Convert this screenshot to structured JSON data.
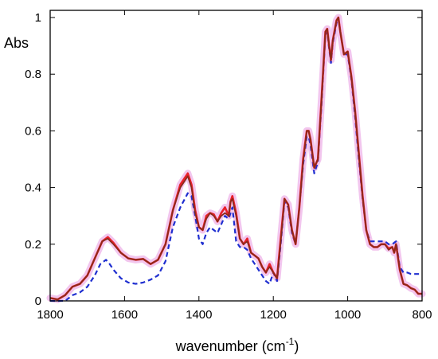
{
  "chart_data": {
    "type": "line",
    "xlabel": "wavenumber",
    "xlabel_unit": "(cm",
    "xlabel_unit_exp": "-1",
    "xlabel_unit_close": ")",
    "ylabel": "Abs",
    "xlim": [
      1800,
      800
    ],
    "ylim": [
      0,
      1.05
    ],
    "x_reversed": true,
    "grid": false,
    "x_ticks": [
      "1800",
      "1600",
      "1400",
      "1200",
      "1000",
      "800"
    ],
    "x_tick_values": [
      1800,
      1600,
      1400,
      1200,
      1000,
      800
    ],
    "y_ticks": [
      "0",
      "0.2",
      "0.4",
      "0.6",
      "0.8",
      "1"
    ],
    "y_tick_values": [
      0,
      0.2,
      0.4,
      0.6,
      0.8,
      1.0
    ],
    "colors": {
      "red": "#e8202a",
      "brown": "#8b2a1a",
      "blue": "#1f2fd0",
      "halo": "#f2c6ee"
    },
    "series": [
      {
        "id": "red",
        "style": "solid",
        "x": [
          1800,
          1780,
          1760,
          1740,
          1720,
          1700,
          1680,
          1660,
          1645,
          1630,
          1610,
          1590,
          1570,
          1550,
          1530,
          1510,
          1490,
          1470,
          1450,
          1430,
          1420,
          1410,
          1400,
          1390,
          1380,
          1370,
          1360,
          1350,
          1340,
          1330,
          1320,
          1315,
          1310,
          1300,
          1290,
          1280,
          1270,
          1260,
          1250,
          1240,
          1230,
          1220,
          1210,
          1200,
          1190,
          1180,
          1170,
          1160,
          1150,
          1140,
          1130,
          1120,
          1110,
          1105,
          1100,
          1090,
          1080,
          1070,
          1060,
          1055,
          1050,
          1045,
          1040,
          1030,
          1025,
          1020,
          1010,
          1000,
          990,
          980,
          970,
          960,
          950,
          940,
          930,
          920,
          910,
          900,
          890,
          880,
          875,
          870,
          860,
          850,
          840,
          830,
          820,
          810,
          800
        ],
        "y": [
          0.01,
          0.005,
          0.02,
          0.05,
          0.06,
          0.09,
          0.15,
          0.21,
          0.225,
          0.205,
          0.17,
          0.15,
          0.145,
          0.148,
          0.13,
          0.145,
          0.2,
          0.32,
          0.41,
          0.45,
          0.41,
          0.32,
          0.26,
          0.25,
          0.3,
          0.31,
          0.305,
          0.28,
          0.31,
          0.33,
          0.3,
          0.35,
          0.37,
          0.31,
          0.22,
          0.2,
          0.22,
          0.17,
          0.16,
          0.15,
          0.12,
          0.1,
          0.13,
          0.1,
          0.08,
          0.22,
          0.36,
          0.34,
          0.25,
          0.2,
          0.33,
          0.5,
          0.6,
          0.6,
          0.57,
          0.47,
          0.5,
          0.72,
          0.95,
          0.96,
          0.9,
          0.85,
          0.92,
          0.99,
          1.0,
          0.95,
          0.87,
          0.88,
          0.79,
          0.67,
          0.52,
          0.37,
          0.25,
          0.2,
          0.19,
          0.19,
          0.2,
          0.2,
          0.185,
          0.19,
          0.17,
          0.2,
          0.11,
          0.06,
          0.055,
          0.045,
          0.04,
          0.025,
          0.025
        ]
      },
      {
        "id": "brown",
        "style": "solid",
        "x": [
          1800,
          1780,
          1760,
          1740,
          1720,
          1700,
          1680,
          1660,
          1645,
          1630,
          1610,
          1590,
          1570,
          1550,
          1530,
          1510,
          1490,
          1470,
          1450,
          1430,
          1420,
          1410,
          1400,
          1390,
          1380,
          1370,
          1360,
          1350,
          1340,
          1330,
          1320,
          1315,
          1310,
          1300,
          1290,
          1280,
          1270,
          1260,
          1250,
          1240,
          1230,
          1220,
          1210,
          1200,
          1190,
          1180,
          1170,
          1160,
          1150,
          1140,
          1130,
          1120,
          1110,
          1105,
          1100,
          1090,
          1080,
          1070,
          1060,
          1055,
          1050,
          1045,
          1040,
          1030,
          1025,
          1020,
          1010,
          1000,
          990,
          980,
          970,
          960,
          950,
          940,
          930,
          920,
          910,
          900,
          890,
          880,
          875,
          870,
          860,
          850,
          840,
          830,
          820,
          810,
          800
        ],
        "y": [
          0.01,
          0.005,
          0.02,
          0.05,
          0.06,
          0.09,
          0.15,
          0.21,
          0.22,
          0.2,
          0.17,
          0.15,
          0.145,
          0.148,
          0.13,
          0.145,
          0.2,
          0.32,
          0.4,
          0.44,
          0.4,
          0.31,
          0.26,
          0.25,
          0.29,
          0.31,
          0.3,
          0.28,
          0.3,
          0.31,
          0.3,
          0.35,
          0.36,
          0.3,
          0.22,
          0.2,
          0.21,
          0.17,
          0.16,
          0.15,
          0.12,
          0.1,
          0.12,
          0.1,
          0.08,
          0.21,
          0.36,
          0.34,
          0.25,
          0.2,
          0.33,
          0.49,
          0.6,
          0.6,
          0.57,
          0.47,
          0.5,
          0.72,
          0.95,
          0.96,
          0.9,
          0.85,
          0.92,
          0.99,
          1.0,
          0.95,
          0.87,
          0.88,
          0.79,
          0.67,
          0.52,
          0.37,
          0.25,
          0.2,
          0.19,
          0.19,
          0.2,
          0.2,
          0.18,
          0.19,
          0.17,
          0.2,
          0.11,
          0.06,
          0.055,
          0.045,
          0.04,
          0.025,
          0.025
        ]
      },
      {
        "id": "blue",
        "style": "dashed",
        "x": [
          1800,
          1780,
          1760,
          1740,
          1720,
          1700,
          1680,
          1665,
          1650,
          1640,
          1630,
          1610,
          1590,
          1570,
          1550,
          1530,
          1510,
          1490,
          1470,
          1450,
          1430,
          1420,
          1410,
          1400,
          1390,
          1380,
          1370,
          1360,
          1350,
          1340,
          1330,
          1320,
          1310,
          1300,
          1290,
          1280,
          1270,
          1260,
          1250,
          1240,
          1230,
          1220,
          1210,
          1200,
          1190,
          1180,
          1170,
          1160,
          1150,
          1140,
          1130,
          1120,
          1110,
          1105,
          1100,
          1090,
          1080,
          1070,
          1060,
          1055,
          1050,
          1045,
          1040,
          1030,
          1025,
          1020,
          1010,
          1000,
          990,
          980,
          970,
          960,
          950,
          940,
          930,
          920,
          910,
          900,
          890,
          880,
          870,
          860,
          850,
          840,
          830,
          820,
          810,
          800
        ],
        "y": [
          0.0,
          0.0,
          0.0,
          0.02,
          0.03,
          0.05,
          0.09,
          0.13,
          0.145,
          0.13,
          0.11,
          0.08,
          0.065,
          0.06,
          0.065,
          0.075,
          0.09,
          0.14,
          0.26,
          0.33,
          0.38,
          0.37,
          0.3,
          0.22,
          0.2,
          0.24,
          0.26,
          0.25,
          0.24,
          0.27,
          0.3,
          0.29,
          0.33,
          0.21,
          0.19,
          0.19,
          0.18,
          0.15,
          0.13,
          0.11,
          0.09,
          0.07,
          0.06,
          0.1,
          0.07,
          0.2,
          0.35,
          0.33,
          0.24,
          0.2,
          0.33,
          0.48,
          0.58,
          0.58,
          0.55,
          0.45,
          0.49,
          0.7,
          0.94,
          0.95,
          0.89,
          0.84,
          0.91,
          0.98,
          1.0,
          0.95,
          0.87,
          0.87,
          0.78,
          0.65,
          0.5,
          0.36,
          0.25,
          0.21,
          0.21,
          0.21,
          0.21,
          0.21,
          0.2,
          0.2,
          0.21,
          0.12,
          0.1,
          0.1,
          0.095,
          0.095,
          0.095,
          0.095
        ]
      }
    ]
  }
}
